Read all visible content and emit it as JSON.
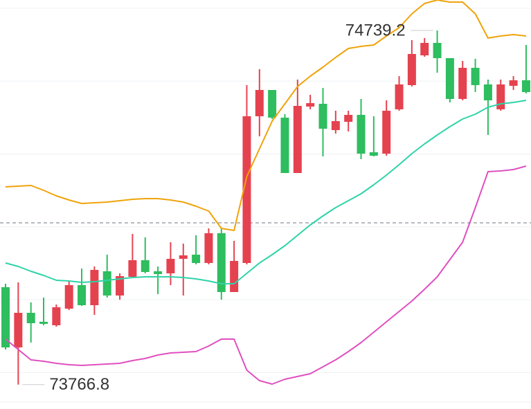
{
  "chart_data": {
    "type": "candlestick",
    "up_color": "#e5424f",
    "down_color": "#2ebd5f",
    "ylim": [
      73699.9,
      74822.8
    ],
    "grid": true,
    "grid_values": [
      74800,
      74600,
      74400,
      74200,
      74000,
      73800
    ],
    "reference_line": 74211.0,
    "open": [
      74034.3,
      73869.0,
      73964.0,
      73939.3,
      73929.8,
      73975.4,
      74040.0,
      73984.9,
      74078.0,
      74011.5,
      74062.8,
      74108.4,
      74078.0,
      74072.3,
      74112.2,
      74123.6,
      74100.8,
      74182.5,
      74021.0,
      74100.8,
      74503.6,
      74575.8,
      74499.8,
      74347.8,
      74530.2,
      74537.8,
      74465.6,
      74488.4,
      74507.4,
      74404.8,
      74401.0,
      74522.6,
      74589.1,
      74670.8,
      74705.0,
      74663.2,
      74551.1,
      74636.6,
      74591.0,
      74522.6,
      74587.2,
      74602.4
    ],
    "high": [
      74043.8,
      74047.6,
      73992.5,
      74005.8,
      73986.8,
      74053.3,
      74085.6,
      74091.3,
      74123.6,
      74072.3,
      74180.6,
      74171.1,
      74091.3,
      74157.8,
      74154.0,
      74176.8,
      74195.8,
      74195.8,
      74161.6,
      74589.1,
      74632.8,
      74575.8,
      74509.3,
      74604.3,
      74562.5,
      74581.5,
      74518.8,
      74518.8,
      74551.1,
      74503.6,
      74547.3,
      74613.8,
      74712.6,
      74718.3,
      74739.2,
      74663.2,
      74655.6,
      74661.3,
      74604.3,
      74604.3,
      74613.8,
      74699.3
    ],
    "low": [
      73863.3,
      73766.8,
      73882.3,
      73929.8,
      73926.0,
      73971.6,
      73983.0,
      73958.3,
      74005.8,
      74000.1,
      74059.0,
      74072.3,
      74015.3,
      74040.0,
      74011.5,
      74097.0,
      74097.0,
      74000.1,
      74021.0,
      74097.0,
      74448.5,
      74496.0,
      74347.8,
      74347.8,
      74522.6,
      74393.4,
      74456.1,
      74461.8,
      74385.8,
      74393.4,
      74395.3,
      74518.8,
      74585.3,
      74667.0,
      74623.3,
      74541.6,
      74547.3,
      74570.1,
      74452.3,
      74518.8,
      74575.8,
      74566.3
    ],
    "close": [
      73869.0,
      73964.0,
      73935.5,
      73933.6,
      73979.2,
      74040.0,
      73984.9,
      74081.8,
      74011.5,
      74064.7,
      74108.4,
      74076.1,
      74070.4,
      74112.2,
      74121.7,
      74100.8,
      74182.5,
      74021.0,
      74106.5,
      74503.6,
      74575.8,
      74499.8,
      74347.8,
      74532.1,
      74539.7,
      74469.4,
      74490.3,
      74507.4,
      74401.0,
      74395.3,
      74518.8,
      74591.0,
      74674.6,
      74705.0,
      74663.2,
      74551.1,
      74636.6,
      74589.1,
      74547.3,
      74591.0,
      74602.4,
      74570.1
    ],
    "bands": [
      {
        "color": "#f0a30a",
        "values": [
          74309.8,
          74311.7,
          74313.6,
          74300.3,
          74285.1,
          74273.7,
          74264.2,
          74266.1,
          74268.0,
          74271.8,
          74275.6,
          74277.5,
          74277.5,
          74273.7,
          74268.0,
          74256.6,
          74243.3,
          74195.8,
          74190.1,
          74338.3,
          74414.3,
          74490.3,
          74537.8,
          74585.3,
          74613.8,
          74638.5,
          74665.1,
          74689.8,
          74695.5,
          74699.3,
          74724.0,
          74746.8,
          74784.8,
          74813.3,
          74822.8,
          74817.1,
          74817.1,
          74784.8,
          74718.3,
          74724.0,
          74727.8,
          74724.0
        ]
      },
      {
        "color": "#2ed3a8",
        "values": [
          74100.8,
          74091.3,
          74078.0,
          74066.6,
          74053.3,
          74051.4,
          74047.6,
          74049.5,
          74053.3,
          74057.1,
          74060.9,
          74062.8,
          74062.8,
          74062.8,
          74060.9,
          74057.1,
          74051.4,
          74043.8,
          74043.8,
          74072.3,
          74100.8,
          74123.6,
          74148.3,
          74176.8,
          74205.3,
          74230.0,
          74252.8,
          74271.8,
          74290.8,
          74315.5,
          74342.1,
          74370.6,
          74401.0,
          74427.6,
          74452.3,
          74475.1,
          74496.0,
          74509.3,
          74528.3,
          74537.8,
          74541.6,
          74547.3
        ]
      },
      {
        "color": "#e04fbf",
        "values": [
          73891.8,
          73863.3,
          73834.8,
          73831.0,
          73825.3,
          73821.5,
          73819.6,
          73821.5,
          73823.4,
          73825.3,
          73832.9,
          73838.6,
          73848.1,
          73853.8,
          73855.7,
          73857.6,
          73872.8,
          73891.8,
          73891.8,
          73806.3,
          73777.8,
          73768.3,
          73781.6,
          73789.2,
          73796.8,
          73815.8,
          73834.8,
          73857.6,
          73882.3,
          73910.8,
          73939.3,
          73967.8,
          73996.3,
          74028.6,
          74062.8,
          74110.3,
          74157.8,
          74252.8,
          74351.6,
          74353.5,
          74357.3,
          74366.8
        ]
      }
    ]
  }
}
